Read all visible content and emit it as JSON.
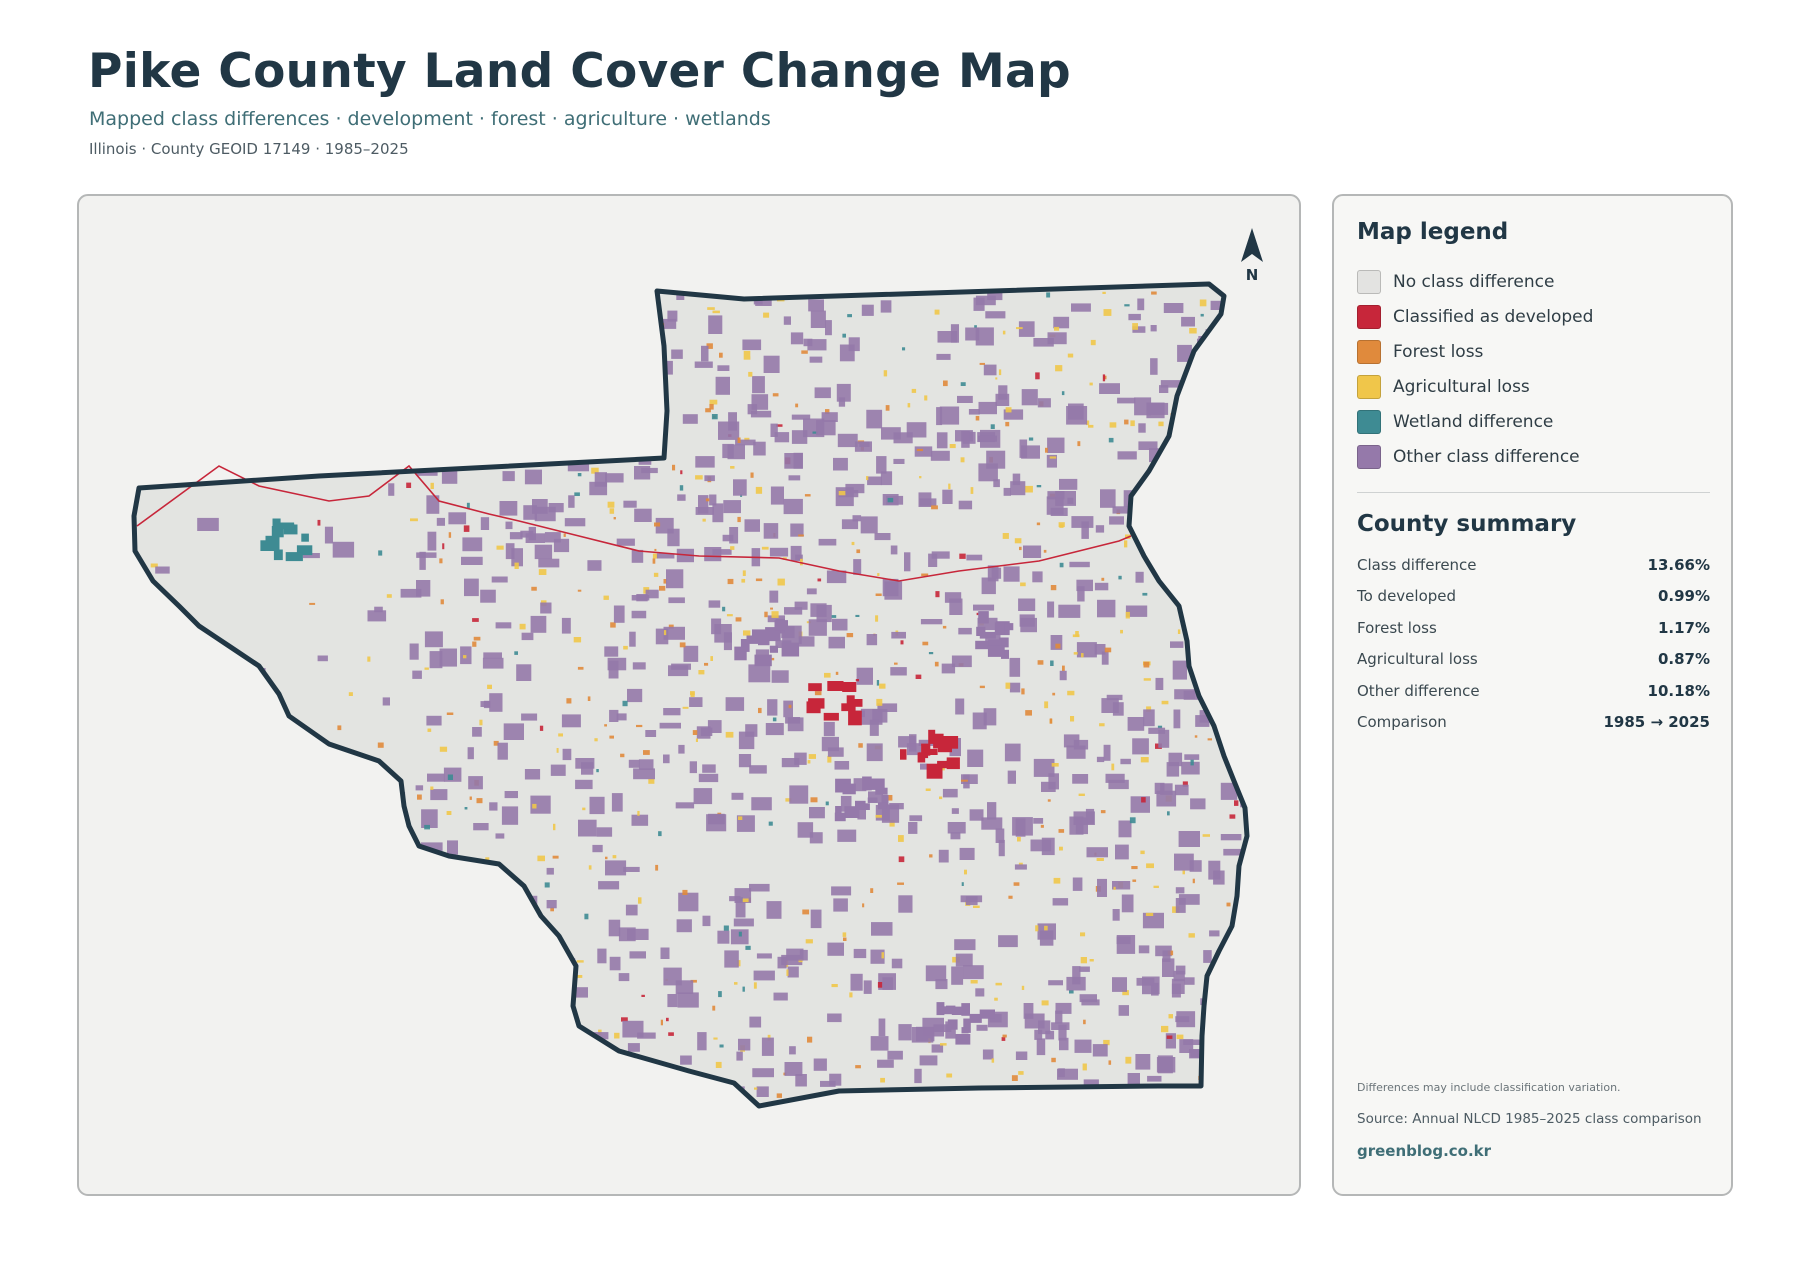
{
  "header": {
    "title": "Pike County Land Cover Change Map",
    "subtitle": "Mapped class differences · development · forest · agriculture · wetlands",
    "meta": "Illinois · County GEOID 17149 · 1985–2025"
  },
  "map": {
    "north_label": "N",
    "colors": {
      "panel_background": "#f2f2f0",
      "county_fill": "#e3e4e1",
      "county_outline": "#213745",
      "road": "#c7263a"
    }
  },
  "legend": {
    "heading": "Map legend",
    "items": [
      {
        "label": "No class difference",
        "color": "#e3e3e1"
      },
      {
        "label": "Classified as developed",
        "color": "#c7263a"
      },
      {
        "label": "Forest loss",
        "color": "#e08a3c"
      },
      {
        "label": "Agricultural loss",
        "color": "#f0c64a"
      },
      {
        "label": "Wetland difference",
        "color": "#3e8b93"
      },
      {
        "label": "Other class difference",
        "color": "#9579aa"
      }
    ]
  },
  "summary": {
    "heading": "County summary",
    "rows": [
      {
        "label": "Class difference",
        "value": "13.66%"
      },
      {
        "label": "To developed",
        "value": "0.99%"
      },
      {
        "label": "Forest loss",
        "value": "1.17%"
      },
      {
        "label": "Agricultural loss",
        "value": "0.87%"
      },
      {
        "label": "Other difference",
        "value": "10.18%"
      },
      {
        "label": "Comparison",
        "value": "1985 → 2025"
      }
    ]
  },
  "footer": {
    "note": "Differences may include classification variation.",
    "source": "Source: Annual NLCD 1985–2025 class comparison",
    "website": "greenblog.co.kr"
  }
}
